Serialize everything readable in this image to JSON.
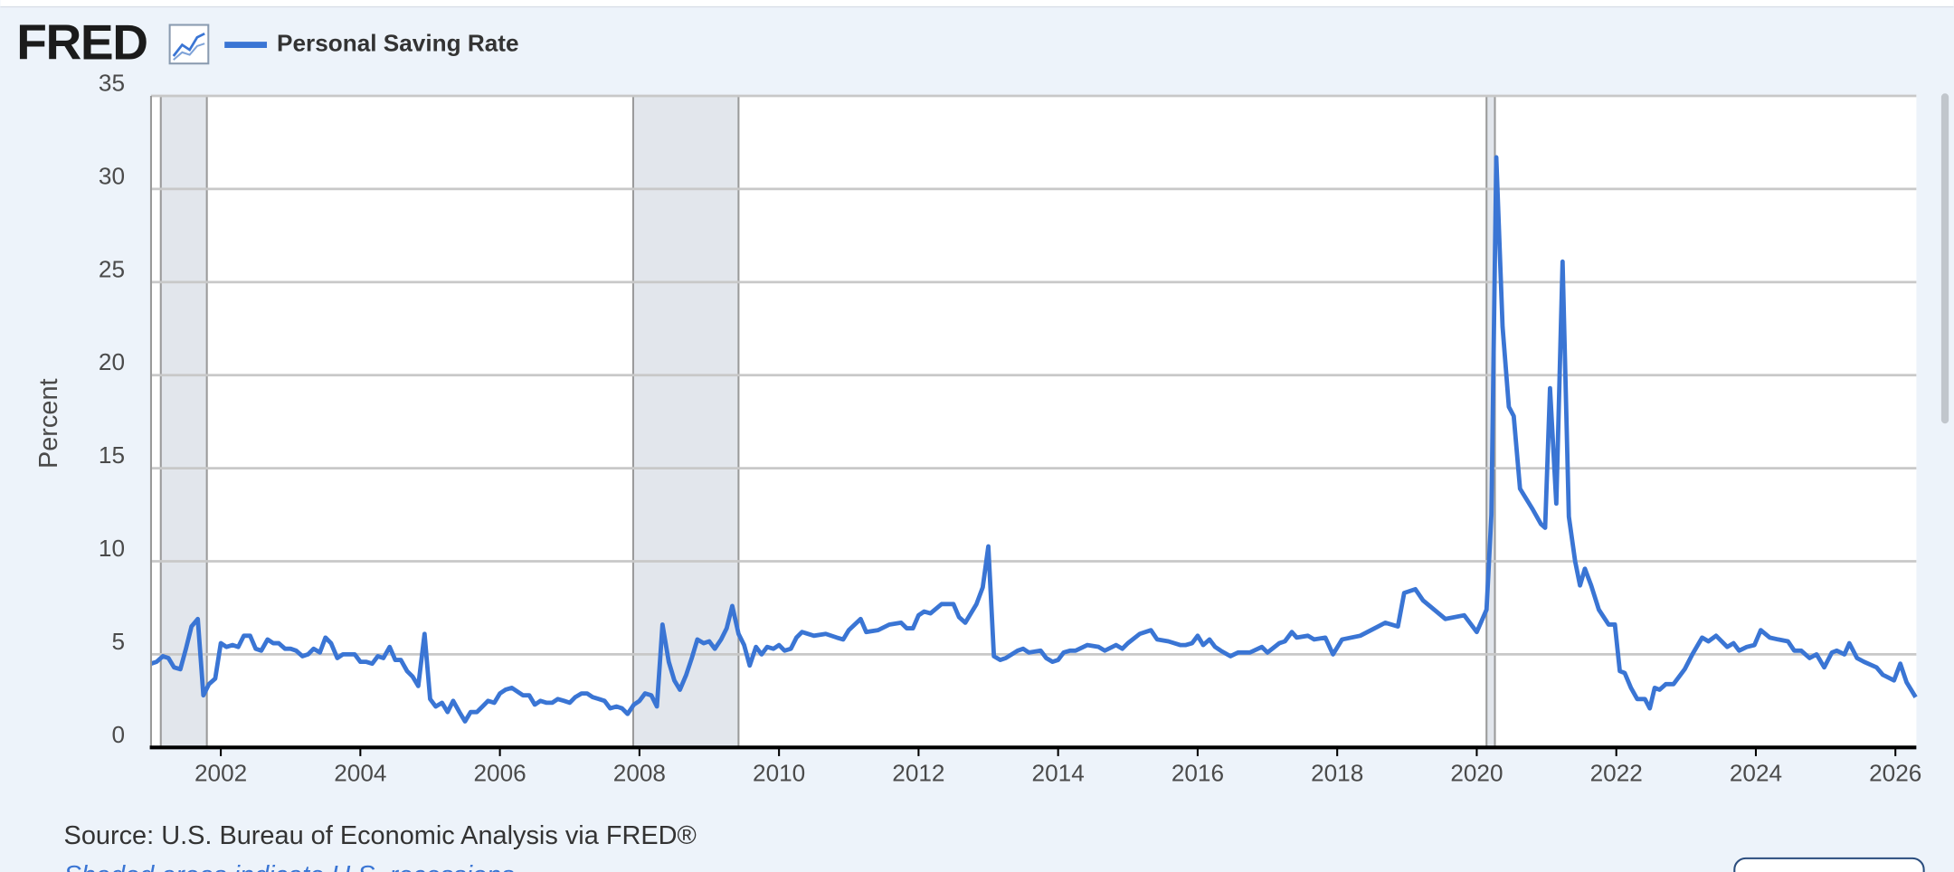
{
  "header": {
    "logo": "FRED"
  },
  "chart_data": {
    "type": "line",
    "ylabel": "Percent",
    "source": "Source: U.S. Bureau of Economic Analysis via FRED®",
    "note": "Shaded areas indicate U.S. recessions",
    "xlim": [
      2001,
      2026.3
    ],
    "xticks": [
      2002,
      2004,
      2006,
      2008,
      2010,
      2012,
      2014,
      2016,
      2018,
      2020,
      2022,
      2024,
      2026
    ],
    "ylim": [
      0,
      35
    ],
    "yticks": [
      0,
      5,
      10,
      15,
      20,
      25,
      30,
      35
    ],
    "grid": true,
    "recessions": [
      [
        2001.14,
        2001.8
      ],
      [
        2007.91,
        2009.42
      ],
      [
        2020.14,
        2020.26
      ]
    ],
    "x": [
      2001.0,
      2001.08,
      2001.17,
      2001.25,
      2001.33,
      2001.42,
      2001.5,
      2001.58,
      2001.67,
      2001.75,
      2001.83,
      2001.92,
      2002.0,
      2002.08,
      2002.17,
      2002.25,
      2002.33,
      2002.42,
      2002.5,
      2002.58,
      2002.67,
      2002.75,
      2002.83,
      2002.92,
      2003.0,
      2003.08,
      2003.17,
      2003.25,
      2003.33,
      2003.42,
      2003.5,
      2003.58,
      2003.67,
      2003.75,
      2003.83,
      2003.92,
      2004.0,
      2004.08,
      2004.17,
      2004.25,
      2004.33,
      2004.42,
      2004.5,
      2004.58,
      2004.67,
      2004.75,
      2004.83,
      2004.92,
      2005.0,
      2005.08,
      2005.17,
      2005.25,
      2005.33,
      2005.42,
      2005.5,
      2005.58,
      2005.67,
      2005.75,
      2005.83,
      2005.92,
      2006.0,
      2006.08,
      2006.17,
      2006.25,
      2006.33,
      2006.42,
      2006.5,
      2006.58,
      2006.67,
      2006.75,
      2006.83,
      2006.92,
      2007.0,
      2007.08,
      2007.17,
      2007.25,
      2007.33,
      2007.42,
      2007.5,
      2007.58,
      2007.67,
      2007.75,
      2007.83,
      2007.92,
      2008.0,
      2008.08,
      2008.17,
      2008.25,
      2008.33,
      2008.42,
      2008.5,
      2008.58,
      2008.67,
      2008.75,
      2008.83,
      2008.92,
      2009.0,
      2009.08,
      2009.17,
      2009.25,
      2009.33,
      2009.42,
      2009.5,
      2009.58,
      2009.67,
      2009.75,
      2009.83,
      2009.92,
      2010.0,
      2010.08,
      2010.17,
      2010.25,
      2010.33,
      2010.5,
      2010.67,
      2010.83,
      2010.92,
      2011.0,
      2011.17,
      2011.25,
      2011.42,
      2011.58,
      2011.75,
      2011.83,
      2011.92,
      2012.0,
      2012.08,
      2012.17,
      2012.33,
      2012.5,
      2012.58,
      2012.67,
      2012.83,
      2012.92,
      2013.0,
      2013.08,
      2013.17,
      2013.25,
      2013.42,
      2013.5,
      2013.58,
      2013.75,
      2013.83,
      2013.92,
      2014.0,
      2014.08,
      2014.17,
      2014.25,
      2014.42,
      2014.58,
      2014.67,
      2014.83,
      2014.92,
      2015.0,
      2015.17,
      2015.33,
      2015.42,
      2015.58,
      2015.75,
      2015.83,
      2015.92,
      2016.0,
      2016.08,
      2016.17,
      2016.25,
      2016.33,
      2016.47,
      2016.58,
      2016.75,
      2016.92,
      2017.0,
      2017.17,
      2017.25,
      2017.35,
      2017.42,
      2017.58,
      2017.67,
      2017.83,
      2017.94,
      2018.07,
      2018.33,
      2018.69,
      2018.87,
      2018.96,
      2019.12,
      2019.23,
      2019.55,
      2019.82,
      2020.0,
      2020.14,
      2020.21,
      2020.28,
      2020.37,
      2020.46,
      2020.53,
      2020.62,
      2020.8,
      2020.92,
      2020.98,
      2021.05,
      2021.14,
      2021.23,
      2021.32,
      2021.41,
      2021.48,
      2021.55,
      2021.64,
      2021.75,
      2021.89,
      2021.98,
      2022.05,
      2022.12,
      2022.21,
      2022.3,
      2022.41,
      2022.48,
      2022.55,
      2022.62,
      2022.71,
      2022.82,
      2022.98,
      2023.09,
      2023.23,
      2023.32,
      2023.43,
      2023.59,
      2023.68,
      2023.76,
      2023.87,
      2023.98,
      2024.07,
      2024.2,
      2024.32,
      2024.46,
      2024.55,
      2024.65,
      2024.77,
      2024.87,
      2024.98,
      2025.09,
      2025.16,
      2025.27,
      2025.34,
      2025.45,
      2025.55,
      2025.73,
      2025.82,
      2025.98,
      2026.07,
      2026.16,
      2026.29
    ],
    "series": [
      {
        "name": "Personal Saving Rate",
        "color": "#3a75d4",
        "values": [
          4.5,
          4.6,
          4.9,
          4.8,
          4.3,
          4.2,
          5.3,
          6.5,
          6.9,
          2.8,
          3.4,
          3.7,
          5.6,
          5.4,
          5.5,
          5.4,
          6.0,
          6.0,
          5.3,
          5.2,
          5.8,
          5.6,
          5.6,
          5.3,
          5.3,
          5.2,
          4.9,
          5.0,
          5.3,
          5.1,
          5.9,
          5.6,
          4.8,
          5.0,
          5.0,
          5.0,
          4.6,
          4.6,
          4.5,
          4.9,
          4.8,
          5.4,
          4.7,
          4.7,
          4.1,
          3.8,
          3.3,
          6.1,
          2.6,
          2.2,
          2.4,
          1.9,
          2.5,
          1.9,
          1.4,
          1.9,
          1.9,
          2.2,
          2.5,
          2.4,
          2.9,
          3.1,
          3.2,
          3.0,
          2.8,
          2.8,
          2.3,
          2.5,
          2.4,
          2.4,
          2.6,
          2.5,
          2.4,
          2.7,
          2.9,
          2.9,
          2.7,
          2.6,
          2.5,
          2.1,
          2.2,
          2.1,
          1.8,
          2.3,
          2.5,
          2.9,
          2.8,
          2.2,
          6.6,
          4.6,
          3.6,
          3.1,
          3.9,
          4.8,
          5.8,
          5.6,
          5.7,
          5.3,
          5.8,
          6.4,
          7.6,
          6.1,
          5.5,
          4.4,
          5.4,
          5.0,
          5.4,
          5.3,
          5.5,
          5.2,
          5.3,
          5.9,
          6.2,
          6.0,
          6.1,
          5.9,
          5.8,
          6.3,
          6.9,
          6.2,
          6.3,
          6.6,
          6.7,
          6.4,
          6.4,
          7.1,
          7.3,
          7.2,
          7.7,
          7.7,
          7.0,
          6.7,
          7.7,
          8.6,
          10.8,
          4.9,
          4.7,
          4.8,
          5.2,
          5.3,
          5.1,
          5.2,
          4.8,
          4.6,
          4.7,
          5.1,
          5.2,
          5.2,
          5.5,
          5.4,
          5.2,
          5.5,
          5.3,
          5.6,
          6.1,
          6.3,
          5.8,
          5.7,
          5.5,
          5.5,
          5.6,
          6.0,
          5.5,
          5.8,
          5.4,
          5.2,
          4.9,
          5.1,
          5.1,
          5.4,
          5.1,
          5.6,
          5.7,
          6.2,
          5.9,
          6.0,
          5.8,
          5.9,
          5.0,
          5.8,
          6.0,
          6.7,
          6.5,
          8.3,
          8.5,
          7.9,
          6.9,
          7.1,
          6.2,
          7.4,
          12.5,
          31.7,
          22.6,
          18.3,
          17.8,
          13.9,
          12.8,
          12.0,
          11.8,
          19.3,
          13.1,
          26.1,
          12.4,
          10.0,
          8.7,
          9.6,
          8.7,
          7.4,
          6.6,
          6.6,
          4.1,
          4.0,
          3.2,
          2.6,
          2.6,
          2.1,
          3.2,
          3.1,
          3.4,
          3.4,
          4.2,
          5.0,
          5.9,
          5.7,
          6.0,
          5.4,
          5.6,
          5.2,
          5.4,
          5.5,
          6.3,
          5.9,
          5.8,
          5.7,
          5.2,
          5.2,
          4.8,
          5.0,
          4.3,
          5.1,
          5.2,
          5.0,
          5.6,
          4.8,
          4.6,
          4.3,
          3.9,
          3.6,
          4.5,
          3.5,
          2.7
        ]
      }
    ]
  }
}
